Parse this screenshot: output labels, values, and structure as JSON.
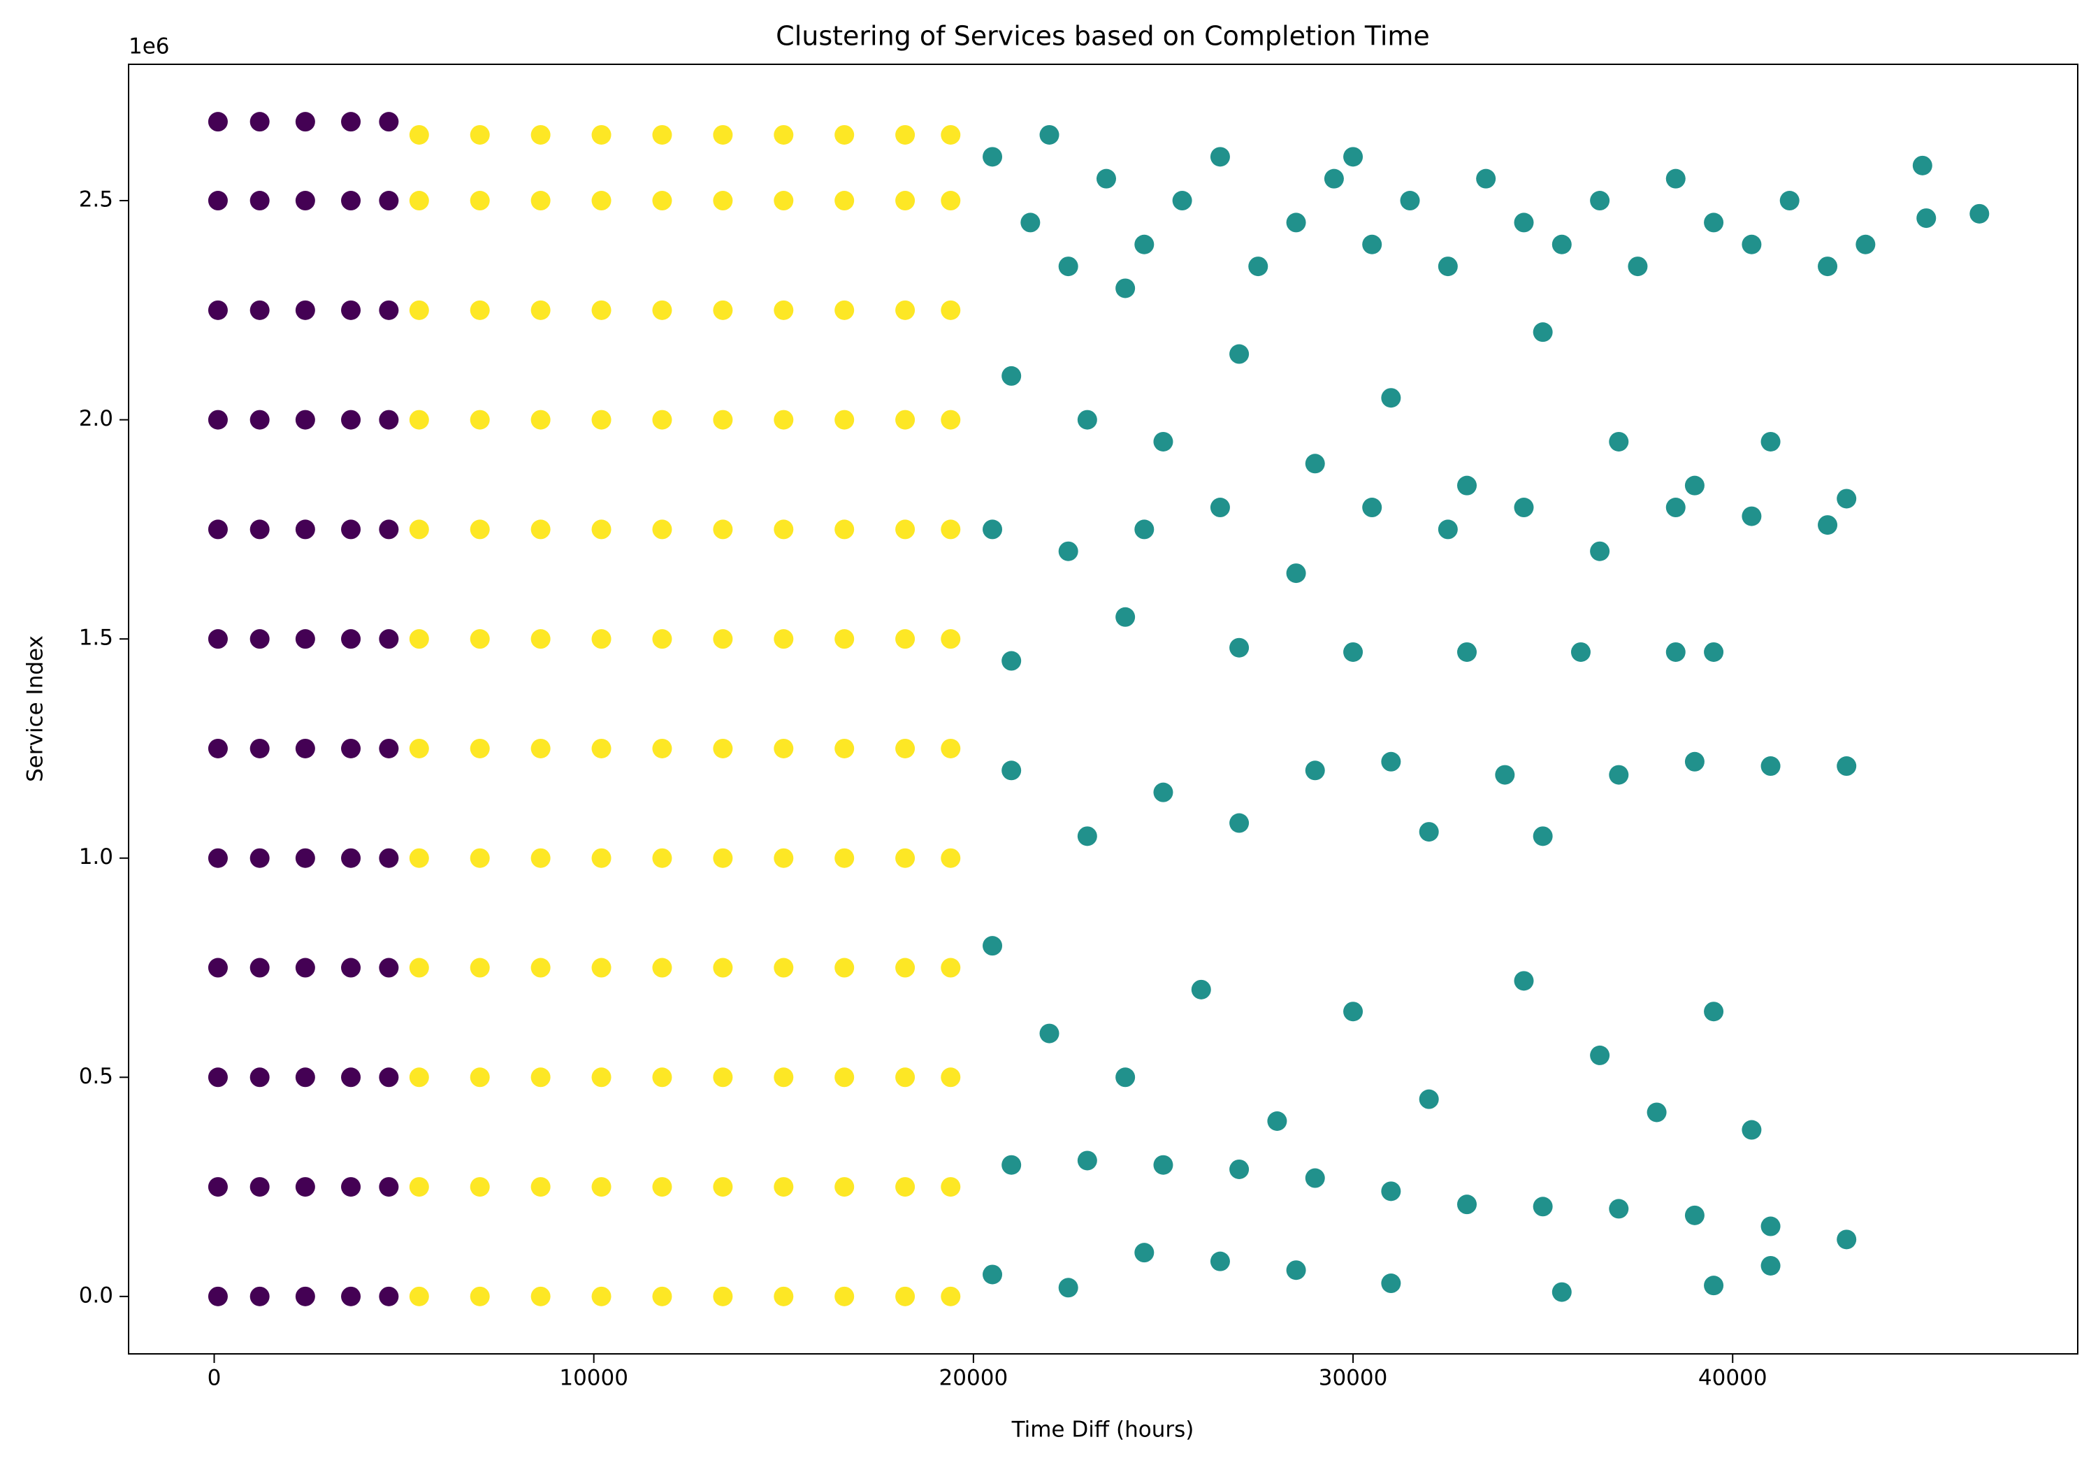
{
  "chart_data": {
    "type": "scatter",
    "title": "Clustering of Services based on Completion Time",
    "x_label": "Time Diff (hours)",
    "y_label": "Service Index",
    "y_offset_label": "1e6",
    "xlim": [
      -2255,
      49090
    ],
    "ylim": [
      -131000,
      2811000
    ],
    "xticks": [
      0,
      10000,
      20000,
      30000,
      40000
    ],
    "yticks": [
      {
        "value": 0,
        "label": "0.0"
      },
      {
        "value": 500000,
        "label": "0.5"
      },
      {
        "value": 1000000,
        "label": "1.0"
      },
      {
        "value": 1500000,
        "label": "1.5"
      },
      {
        "value": 2000000,
        "label": "2.0"
      },
      {
        "value": 2500000,
        "label": "2.5"
      }
    ],
    "series": [
      {
        "color": "#440154",
        "x": [
          100,
          100,
          100,
          100,
          100,
          100,
          100,
          100,
          100,
          100,
          100,
          100,
          1200,
          1200,
          1200,
          1200,
          1200,
          1200,
          1200,
          1200,
          1200,
          1200,
          1200,
          1200,
          2400,
          2400,
          2400,
          2400,
          2400,
          2400,
          2400,
          2400,
          2400,
          2400,
          2400,
          2400,
          3600,
          3600,
          3600,
          3600,
          3600,
          3600,
          3600,
          3600,
          3600,
          3600,
          3600,
          3600,
          4600,
          4600,
          4600,
          4600,
          4600,
          4600,
          4600,
          4600,
          4600,
          4600,
          4600,
          4600
        ],
        "y": [
          0,
          250000,
          500000,
          750000,
          1000000,
          1250000,
          1500000,
          1750000,
          2000000,
          2250000,
          2500000,
          2680000,
          0,
          250000,
          500000,
          750000,
          1000000,
          1250000,
          1500000,
          1750000,
          2000000,
          2250000,
          2500000,
          2680000,
          0,
          250000,
          500000,
          750000,
          1000000,
          1250000,
          1500000,
          1750000,
          2000000,
          2250000,
          2500000,
          2680000,
          0,
          250000,
          500000,
          750000,
          1000000,
          1250000,
          1500000,
          1750000,
          2000000,
          2250000,
          2500000,
          2680000,
          0,
          250000,
          500000,
          750000,
          1000000,
          1250000,
          1500000,
          1750000,
          2000000,
          2250000,
          2500000,
          2680000
        ]
      },
      {
        "color": "#fde725",
        "x": [
          5400,
          5400,
          5400,
          5400,
          5400,
          5400,
          5400,
          5400,
          5400,
          5400,
          5400,
          5400,
          7000,
          7000,
          7000,
          7000,
          7000,
          7000,
          7000,
          7000,
          7000,
          7000,
          7000,
          7000,
          8600,
          8600,
          8600,
          8600,
          8600,
          8600,
          8600,
          8600,
          8600,
          8600,
          8600,
          8600,
          10200,
          10200,
          10200,
          10200,
          10200,
          10200,
          10200,
          10200,
          10200,
          10200,
          10200,
          10200,
          11800,
          11800,
          11800,
          11800,
          11800,
          11800,
          11800,
          11800,
          11800,
          11800,
          11800,
          11800,
          13400,
          13400,
          13400,
          13400,
          13400,
          13400,
          13400,
          13400,
          13400,
          13400,
          13400,
          13400,
          15000,
          15000,
          15000,
          15000,
          15000,
          15000,
          15000,
          15000,
          15000,
          15000,
          15000,
          15000,
          16600,
          16600,
          16600,
          16600,
          16600,
          16600,
          16600,
          16600,
          16600,
          16600,
          16600,
          16600,
          18200,
          18200,
          18200,
          18200,
          18200,
          18200,
          18200,
          18200,
          18200,
          18200,
          18200,
          18200,
          19400,
          19400,
          19400,
          19400,
          19400,
          19400,
          19400,
          19400,
          19400,
          19400,
          19400,
          19400
        ],
        "y": [
          0,
          250000,
          500000,
          750000,
          1000000,
          1250000,
          1500000,
          1750000,
          2000000,
          2250000,
          2500000,
          2650000,
          0,
          250000,
          500000,
          750000,
          1000000,
          1250000,
          1500000,
          1750000,
          2000000,
          2250000,
          2500000,
          2650000,
          0,
          250000,
          500000,
          750000,
          1000000,
          1250000,
          1500000,
          1750000,
          2000000,
          2250000,
          2500000,
          2650000,
          0,
          250000,
          500000,
          750000,
          1000000,
          1250000,
          1500000,
          1750000,
          2000000,
          2250000,
          2500000,
          2650000,
          0,
          250000,
          500000,
          750000,
          1000000,
          1250000,
          1500000,
          1750000,
          2000000,
          2250000,
          2500000,
          2650000,
          0,
          250000,
          500000,
          750000,
          1000000,
          1250000,
          1500000,
          1750000,
          2000000,
          2250000,
          2500000,
          2650000,
          0,
          250000,
          500000,
          750000,
          1000000,
          1250000,
          1500000,
          1750000,
          2000000,
          2250000,
          2500000,
          2650000,
          0,
          250000,
          500000,
          750000,
          1000000,
          1250000,
          1500000,
          1750000,
          2000000,
          2250000,
          2500000,
          2650000,
          0,
          250000,
          500000,
          750000,
          1000000,
          1250000,
          1500000,
          1750000,
          2000000,
          2250000,
          2500000,
          2650000,
          0,
          250000,
          500000,
          750000,
          1000000,
          1250000,
          1500000,
          1750000,
          2000000,
          2250000,
          2500000,
          2650000
        ]
      },
      {
        "color": "#21918c",
        "x": [
          20500,
          21500,
          22500,
          23500,
          24500,
          25500,
          26500,
          27500,
          28500,
          29500,
          30500,
          31500,
          32500,
          33500,
          34500,
          35500,
          36500,
          37500,
          38500,
          39500,
          40500,
          41500,
          42500,
          43500,
          45000,
          45100,
          46500,
          22000,
          24000,
          30000,
          21000,
          23000,
          25000,
          27000,
          29000,
          31000,
          33000,
          35000,
          37000,
          39000,
          41000,
          43000,
          20500,
          22500,
          24500,
          26500,
          28500,
          30500,
          32500,
          34500,
          36500,
          38500,
          40500,
          42500,
          21000,
          24000,
          27000,
          30000,
          33000,
          36000,
          38500,
          39500,
          21000,
          25000,
          29000,
          31000,
          34000,
          37000,
          39000,
          41000,
          43000,
          23000,
          27000,
          32000,
          35000,
          20500,
          22000,
          24000,
          26000,
          28000,
          30000,
          32000,
          34500,
          36500,
          38000,
          39500,
          40500,
          21000,
          23000,
          25000,
          27000,
          29000,
          31000,
          33000,
          35000,
          37000,
          39000,
          41000,
          43000,
          20500,
          22500,
          24500,
          26500,
          28500,
          31000,
          35500,
          39500,
          41000
        ],
        "y": [
          2600000,
          2450000,
          2350000,
          2550000,
          2400000,
          2500000,
          2600000,
          2350000,
          2450000,
          2550000,
          2400000,
          2500000,
          2350000,
          2550000,
          2450000,
          2400000,
          2500000,
          2350000,
          2550000,
          2450000,
          2400000,
          2500000,
          2350000,
          2400000,
          2580000,
          2460000,
          2470000,
          2650000,
          2300000,
          2600000,
          2100000,
          2000000,
          1950000,
          2150000,
          1900000,
          2050000,
          1850000,
          2200000,
          1950000,
          1850000,
          1950000,
          1820000,
          1750000,
          1700000,
          1750000,
          1800000,
          1650000,
          1800000,
          1750000,
          1800000,
          1700000,
          1800000,
          1780000,
          1760000,
          1450000,
          1550000,
          1480000,
          1470000,
          1470000,
          1470000,
          1470000,
          1470000,
          1200000,
          1150000,
          1200000,
          1220000,
          1190000,
          1190000,
          1220000,
          1210000,
          1210000,
          1050000,
          1080000,
          1060000,
          1050000,
          800000,
          600000,
          500000,
          700000,
          400000,
          650000,
          450000,
          720000,
          550000,
          420000,
          650000,
          380000,
          300000,
          310000,
          300000,
          290000,
          270000,
          240000,
          210000,
          205000,
          200000,
          185000,
          160000,
          130000,
          50000,
          20000,
          100000,
          80000,
          60000,
          30000,
          10000,
          25000,
          70000
        ]
      }
    ]
  }
}
